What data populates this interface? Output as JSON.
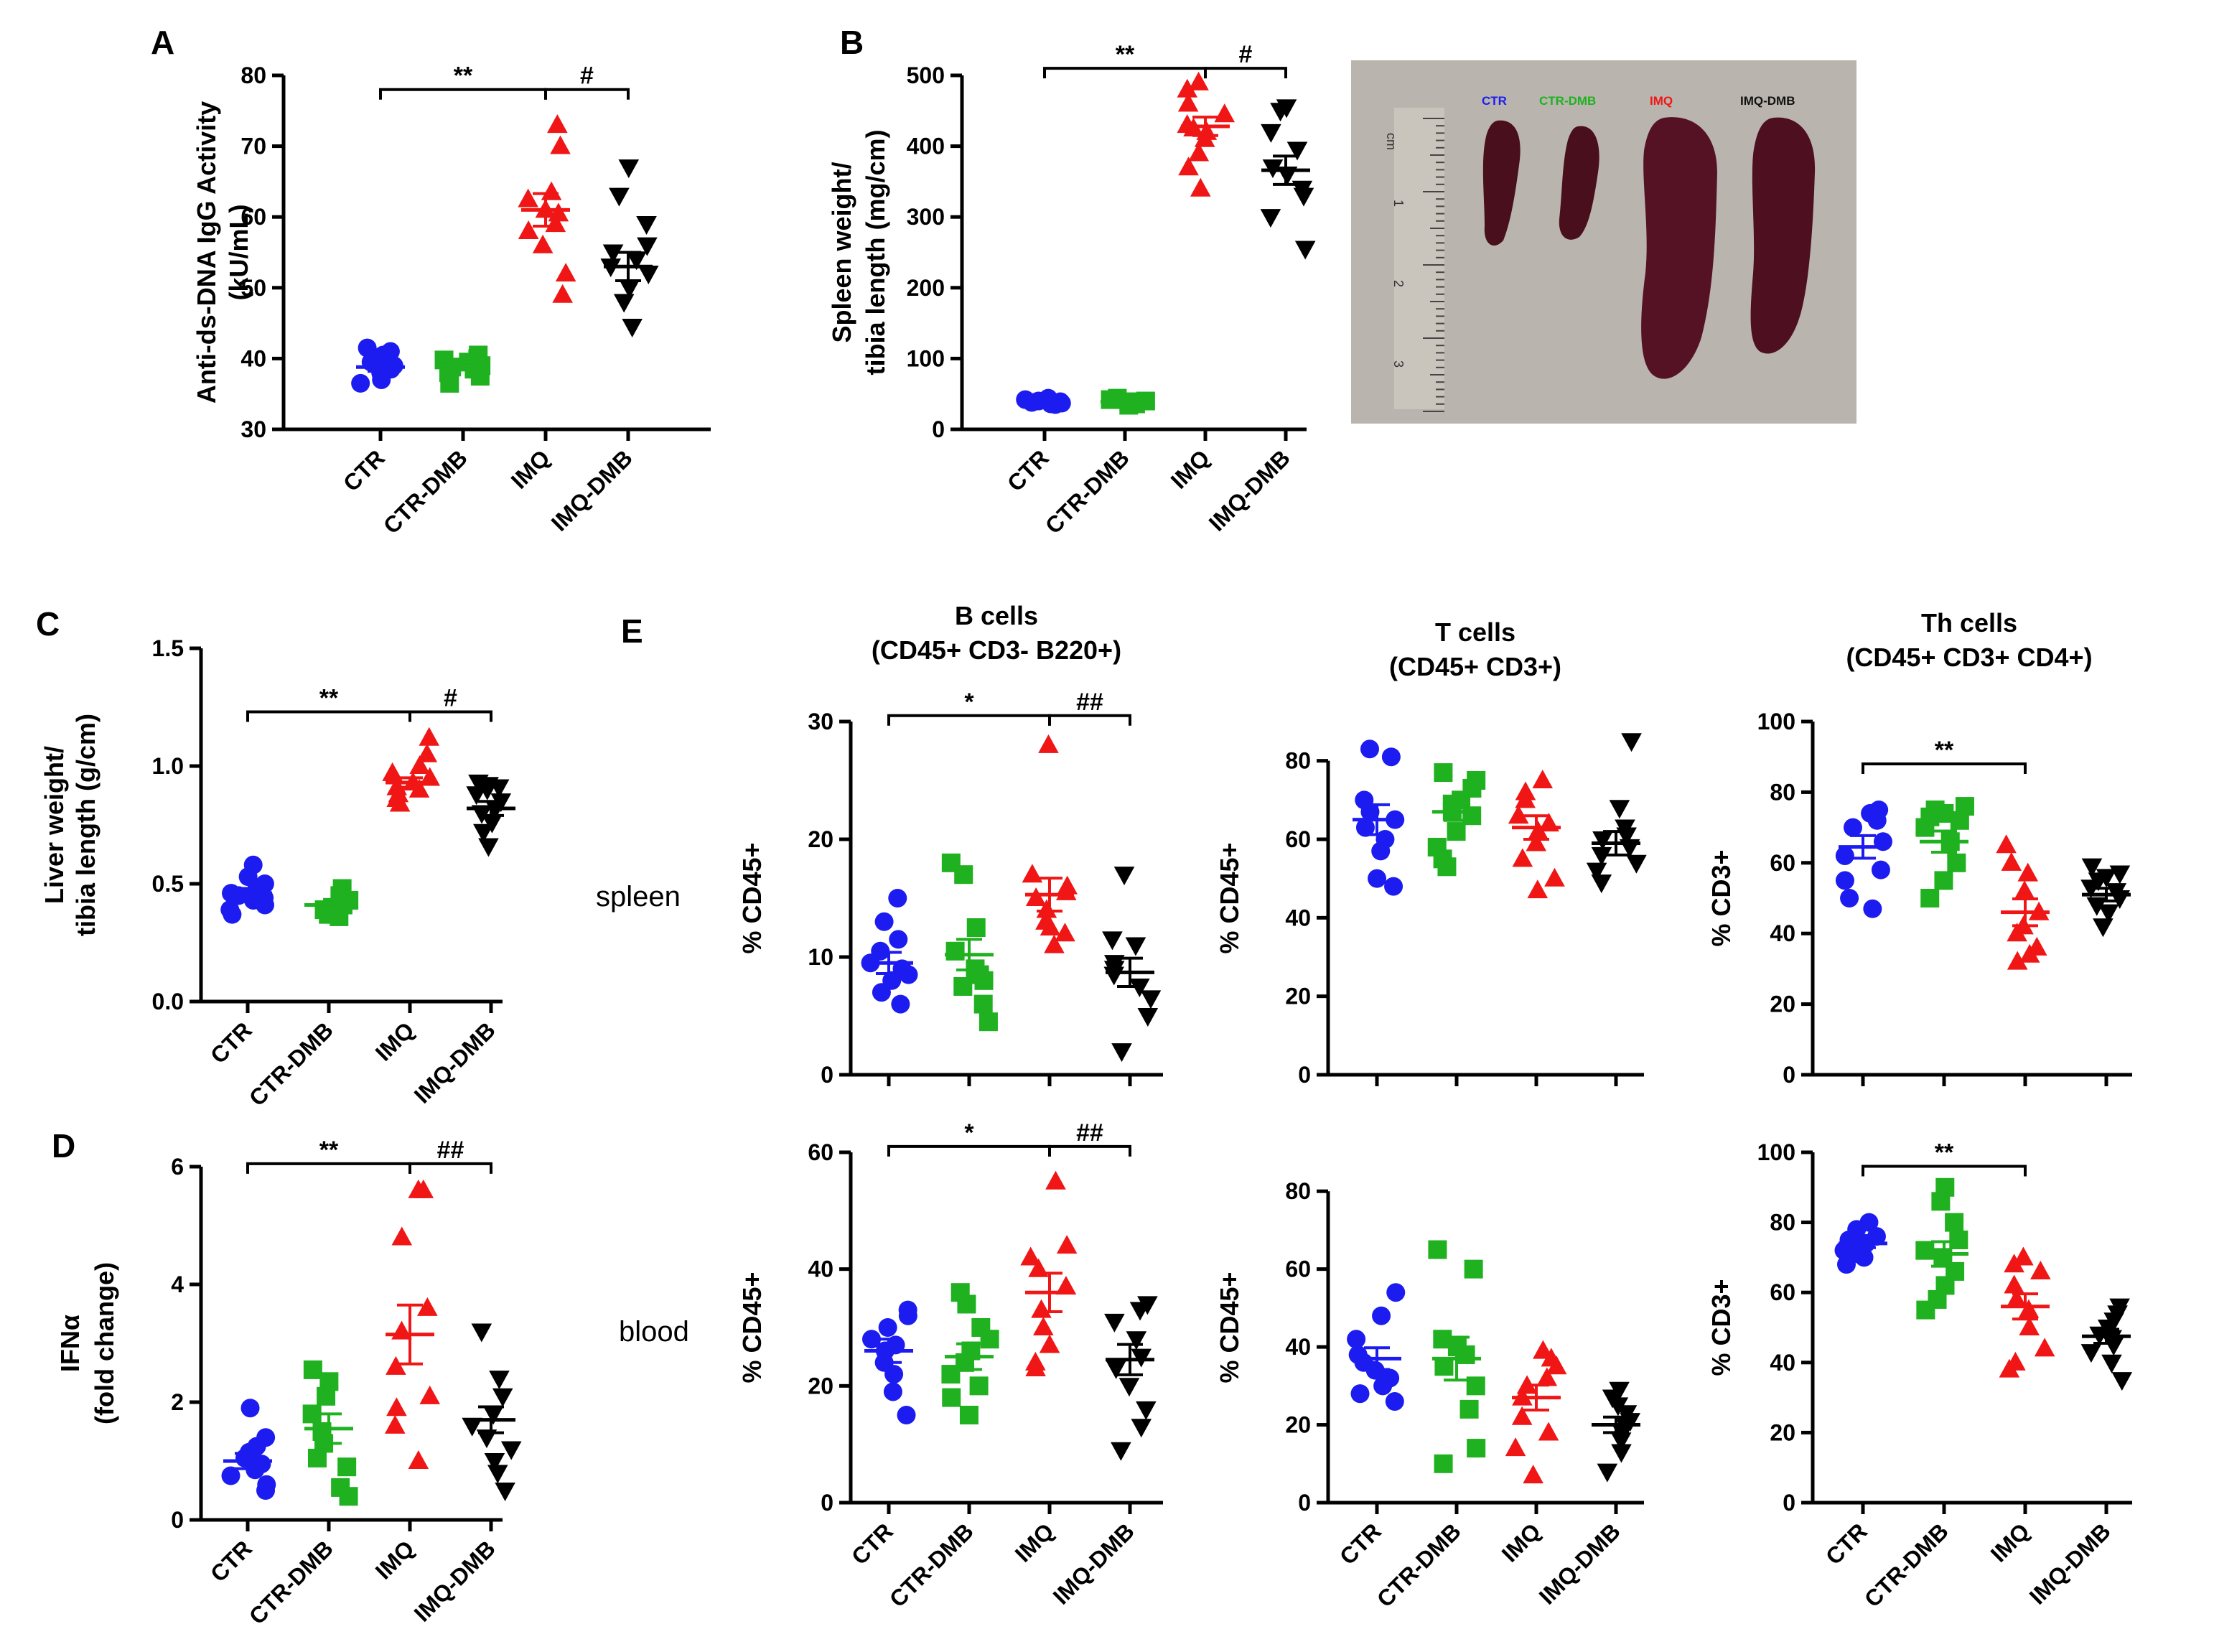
{
  "colors": {
    "CTR": "#1c1cf0",
    "CTR-DMB": "#1fb11f",
    "IMQ": "#f01616",
    "IMQ-DMB": "#000000"
  },
  "shapes": {
    "CTR": "circle",
    "CTR-DMB": "square",
    "IMQ": "triangle-up",
    "IMQ-DMB": "triangle-down"
  },
  "photo": {
    "legend": [
      "CTR",
      "CTR-DMB",
      "IMQ",
      "IMQ-DMB"
    ],
    "ruler_labels": [
      "cm",
      "1",
      "2",
      "3"
    ],
    "colors": {
      "background": "#b9b5ae",
      "spleen": "#4a0f1c"
    }
  },
  "row_labels": {
    "spleen": "spleen",
    "blood": "blood"
  },
  "chart_data": [
    {
      "id": "A",
      "type": "scatter",
      "panel_label": "A",
      "title": "",
      "subtitle": "",
      "ylabel": [
        "Anti-ds-DNA IgG Activity",
        "(kU/mL)"
      ],
      "xlabel": "",
      "categories": [
        "CTR",
        "CTR-DMB",
        "IMQ",
        "IMQ-DMB"
      ],
      "ylim": [
        30,
        80
      ],
      "yticks": [
        30,
        40,
        50,
        60,
        70,
        80
      ],
      "tick_labels": [
        "30",
        "40",
        "50",
        "60",
        "70",
        "80"
      ],
      "series": [
        {
          "name": "CTR",
          "values": [
            41.5,
            41,
            40.5,
            40,
            39.5,
            39,
            38.5,
            38,
            37.5,
            37,
            36.5
          ],
          "mean": 38.8,
          "sem": 0.6
        },
        {
          "name": "CTR-DMB",
          "values": [
            40.5,
            40,
            39.8,
            39.5,
            39,
            38.8,
            38.5,
            38,
            37.5,
            36.5
          ],
          "mean": 39,
          "sem": 0.5
        },
        {
          "name": "IMQ",
          "values": [
            73,
            70,
            63.5,
            62.5,
            61,
            60.5,
            59,
            58,
            56,
            52,
            49
          ],
          "mean": 61,
          "sem": 2.3
        },
        {
          "name": "IMQ-DMB",
          "values": [
            67,
            63,
            59,
            56,
            55,
            54,
            53,
            52,
            50,
            48,
            44.5
          ],
          "mean": 53,
          "sem": 2.0
        }
      ],
      "brackets": [
        {
          "from": "CTR",
          "to": "IMQ",
          "y": 78,
          "label": "**"
        },
        {
          "from": "IMQ",
          "to": "IMQ-DMB",
          "y": 78,
          "label": "#"
        }
      ]
    },
    {
      "id": "B",
      "type": "scatter",
      "panel_label": "B",
      "title": "",
      "subtitle": "",
      "ylabel": [
        "Spleen weight/",
        "tibia length (mg/cm)"
      ],
      "xlabel": "",
      "categories": [
        "CTR",
        "CTR-DMB",
        "IMQ",
        "IMQ-DMB"
      ],
      "ylim": [
        0,
        500
      ],
      "yticks": [
        0,
        100,
        200,
        300,
        400,
        500
      ],
      "tick_labels": [
        "0",
        "100",
        "200",
        "300",
        "400",
        "500"
      ],
      "series": [
        {
          "name": "CTR",
          "values": [
            44,
            42,
            40,
            39,
            38,
            37,
            36,
            35
          ],
          "mean": 39,
          "sem": 1
        },
        {
          "name": "CTR-DMB",
          "values": [
            44,
            42,
            40,
            39,
            38,
            37,
            36,
            34
          ],
          "mean": 39,
          "sem": 1
        },
        {
          "name": "IMQ",
          "values": [
            490,
            480,
            460,
            445,
            430,
            425,
            420,
            410,
            390,
            370,
            340
          ],
          "mean": 428,
          "sem": 13
        },
        {
          "name": "IMQ-DMB",
          "values": [
            455,
            450,
            420,
            395,
            370,
            360,
            340,
            330,
            300,
            255
          ],
          "mean": 366,
          "sem": 20
        }
      ],
      "brackets": [
        {
          "from": "CTR",
          "to": "IMQ",
          "y": 510,
          "label": "**"
        },
        {
          "from": "IMQ",
          "to": "IMQ-DMB",
          "y": 510,
          "label": "#"
        }
      ]
    },
    {
      "id": "C",
      "type": "scatter",
      "panel_label": "C",
      "title": "",
      "subtitle": "",
      "ylabel": [
        "Liver weight/",
        "tibia length (g/cm)"
      ],
      "xlabel": "",
      "categories": [
        "CTR",
        "CTR-DMB",
        "IMQ",
        "IMQ-DMB"
      ],
      "ylim": [
        0,
        1.5
      ],
      "yticks": [
        0,
        0.5,
        1.0,
        1.5
      ],
      "tick_labels": [
        "0.0",
        "0.5",
        "1.0",
        "1.5"
      ],
      "series": [
        {
          "name": "CTR",
          "values": [
            0.58,
            0.53,
            0.5,
            0.48,
            0.46,
            0.45,
            0.44,
            0.43,
            0.41,
            0.39,
            0.37
          ],
          "mean": 0.46,
          "sem": 0.02
        },
        {
          "name": "CTR-DMB",
          "values": [
            0.48,
            0.45,
            0.43,
            0.42,
            0.41,
            0.4,
            0.39,
            0.38,
            0.37,
            0.36
          ],
          "mean": 0.41,
          "sem": 0.01
        },
        {
          "name": "IMQ",
          "values": [
            1.12,
            1.05,
            1.0,
            0.97,
            0.95,
            0.93,
            0.91,
            0.9,
            0.88,
            0.86,
            0.84
          ],
          "mean": 0.93,
          "sem": 0.02
        },
        {
          "name": "IMQ-DMB",
          "values": [
            0.93,
            0.92,
            0.91,
            0.9,
            0.88,
            0.85,
            0.82,
            0.8,
            0.76,
            0.72,
            0.66
          ],
          "mean": 0.82,
          "sem": 0.03
        }
      ],
      "brackets": [
        {
          "from": "CTR",
          "to": "IMQ",
          "y": 1.23,
          "label": "**"
        },
        {
          "from": "IMQ",
          "to": "IMQ-DMB",
          "y": 1.23,
          "label": "#"
        }
      ]
    },
    {
      "id": "D",
      "type": "scatter",
      "panel_label": "D",
      "title": "",
      "subtitle": "",
      "ylabel": [
        "IFNα",
        "(fold change)"
      ],
      "xlabel": "",
      "categories": [
        "CTR",
        "CTR-DMB",
        "IMQ",
        "IMQ-DMB"
      ],
      "ylim": [
        0,
        6
      ],
      "yticks": [
        0,
        2,
        4,
        6
      ],
      "tick_labels": [
        "0",
        "2",
        "4",
        "6"
      ],
      "series": [
        {
          "name": "CTR",
          "values": [
            1.9,
            1.4,
            1.25,
            1.15,
            1.05,
            0.95,
            0.85,
            0.75,
            0.6,
            0.5
          ],
          "mean": 1.0,
          "sem": 0.13
        },
        {
          "name": "CTR-DMB",
          "values": [
            2.55,
            2.35,
            2.1,
            1.8,
            1.5,
            1.3,
            1.05,
            0.9,
            0.55,
            0.4
          ],
          "mean": 1.55,
          "sem": 0.25
        },
        {
          "name": "IMQ",
          "values": [
            5.6,
            5.6,
            4.8,
            3.6,
            3.2,
            2.6,
            2.1,
            1.9,
            1.6,
            1.0
          ],
          "mean": 3.15,
          "sem": 0.5
        },
        {
          "name": "IMQ-DMB",
          "values": [
            3.2,
            2.4,
            2.1,
            1.8,
            1.6,
            1.4,
            1.2,
            1.0,
            0.8,
            0.5
          ],
          "mean": 1.7,
          "sem": 0.22
        }
      ],
      "brackets": [
        {
          "from": "CTR",
          "to": "IMQ",
          "y": 6.05,
          "label": "**"
        },
        {
          "from": "IMQ",
          "to": "IMQ-DMB",
          "y": 6.05,
          "label": "##"
        }
      ]
    },
    {
      "id": "E-B-spleen",
      "type": "scatter",
      "panel_label": "E",
      "title": "B cells",
      "subtitle": "(CD45+ CD3- B220+)",
      "ylabel": [
        "% CD45+"
      ],
      "xlabel": "",
      "categories": [
        "CTR",
        "CTR-DMB",
        "IMQ",
        "IMQ-DMB"
      ],
      "ylim": [
        0,
        30
      ],
      "yticks": [
        0,
        10,
        20,
        30
      ],
      "tick_labels": [
        "0",
        "10",
        "20",
        "30"
      ],
      "series": [
        {
          "name": "CTR",
          "values": [
            15,
            13,
            11.5,
            10.5,
            9.5,
            9,
            8.5,
            8,
            7,
            6
          ],
          "mean": 9.5,
          "sem": 0.9
        },
        {
          "name": "CTR-DMB",
          "values": [
            18,
            17,
            12.5,
            10.5,
            9,
            8.5,
            8,
            7.5,
            6,
            4.5
          ],
          "mean": 10.2,
          "sem": 1.3
        },
        {
          "name": "IMQ",
          "values": [
            28,
            17,
            16,
            15.5,
            15,
            14,
            13,
            12.5,
            12,
            11
          ],
          "mean": 15.3,
          "sem": 1.4
        },
        {
          "name": "IMQ-DMB",
          "values": [
            17,
            11.5,
            11,
            9.5,
            9,
            8.5,
            7.5,
            6.5,
            5,
            2
          ],
          "mean": 8.7,
          "sem": 1.2
        }
      ],
      "brackets": [
        {
          "from": "CTR",
          "to": "IMQ",
          "y": 30.5,
          "label": "*"
        },
        {
          "from": "IMQ",
          "to": "IMQ-DMB",
          "y": 30.5,
          "label": "##"
        }
      ]
    },
    {
      "id": "E-T-spleen",
      "type": "scatter",
      "panel_label": "",
      "title": "T cells",
      "subtitle": "(CD45+ CD3+)",
      "ylabel": [
        "% CD45+"
      ],
      "xlabel": "",
      "categories": [
        "CTR",
        "CTR-DMB",
        "IMQ",
        "IMQ-DMB"
      ],
      "ylim": [
        0,
        90
      ],
      "yticks": [
        0,
        20,
        40,
        60,
        80
      ],
      "tick_labels": [
        "0",
        "20",
        "40",
        "60",
        "80"
      ],
      "series": [
        {
          "name": "CTR",
          "values": [
            83,
            81,
            70,
            67,
            65,
            63,
            60,
            57,
            50,
            48
          ],
          "mean": 65,
          "sem": 3.8
        },
        {
          "name": "CTR-DMB",
          "values": [
            77,
            75,
            73,
            70,
            69,
            67,
            66,
            62,
            58,
            55,
            53
          ],
          "mean": 67,
          "sem": 2.2
        },
        {
          "name": "IMQ",
          "values": [
            75,
            72,
            70,
            66,
            64,
            62,
            59,
            55,
            50,
            47
          ],
          "mean": 63,
          "sem": 3
        },
        {
          "name": "IMQ-DMB",
          "values": [
            85,
            68,
            63,
            61,
            60,
            58,
            56,
            54,
            52,
            49
          ],
          "mean": 59,
          "sem": 3
        }
      ],
      "brackets": []
    },
    {
      "id": "E-Th-spleen",
      "type": "scatter",
      "panel_label": "",
      "title": "Th cells",
      "subtitle": "(CD45+ CD3+ CD4+)",
      "ylabel": [
        "% CD3+"
      ],
      "xlabel": "",
      "categories": [
        "CTR",
        "CTR-DMB",
        "IMQ",
        "IMQ-DMB"
      ],
      "ylim": [
        0,
        100
      ],
      "yticks": [
        0,
        20,
        40,
        60,
        80,
        100
      ],
      "tick_labels": [
        "0",
        "20",
        "40",
        "60",
        "80",
        "100"
      ],
      "series": [
        {
          "name": "CTR",
          "values": [
            75,
            74,
            72,
            70,
            66,
            62,
            58,
            55,
            50,
            47
          ],
          "mean": 64.5,
          "sem": 3.2
        },
        {
          "name": "CTR-DMB",
          "values": [
            76,
            75,
            74,
            73,
            72,
            70,
            66,
            60,
            55,
            50
          ],
          "mean": 66,
          "sem": 3
        },
        {
          "name": "IMQ",
          "values": [
            65,
            60,
            57,
            52,
            46,
            42,
            40,
            36,
            34,
            32
          ],
          "mean": 46,
          "sem": 3.8
        },
        {
          "name": "IMQ-DMB",
          "values": [
            59,
            57,
            56,
            55,
            53,
            52,
            50,
            48,
            46,
            42
          ],
          "mean": 51,
          "sem": 1.8
        }
      ],
      "brackets": [
        {
          "from": "CTR",
          "to": "IMQ",
          "y": 88,
          "label": "**"
        }
      ]
    },
    {
      "id": "E-B-blood",
      "type": "scatter",
      "panel_label": "",
      "title": "",
      "subtitle": "",
      "ylabel": [
        "% CD45+"
      ],
      "xlabel": "",
      "categories": [
        "CTR",
        "CTR-DMB",
        "IMQ",
        "IMQ-DMB"
      ],
      "ylim": [
        0,
        60
      ],
      "yticks": [
        0,
        20,
        40,
        60
      ],
      "tick_labels": [
        "0",
        "20",
        "40",
        "60"
      ],
      "series": [
        {
          "name": "CTR",
          "values": [
            33,
            32,
            30,
            28,
            27,
            26,
            24,
            22,
            19,
            15
          ],
          "mean": 26,
          "sem": 2
        },
        {
          "name": "CTR-DMB",
          "values": [
            36,
            34,
            30,
            28,
            26,
            24,
            22,
            20,
            18,
            15
          ],
          "mean": 25,
          "sem": 2.2
        },
        {
          "name": "IMQ",
          "values": [
            55,
            44,
            42,
            40,
            37,
            33,
            30,
            27,
            24,
            23
          ],
          "mean": 36,
          "sem": 3.3
        },
        {
          "name": "IMQ-DMB",
          "values": [
            34,
            33,
            31,
            28,
            25,
            23,
            20,
            16,
            13,
            9
          ],
          "mean": 24.5,
          "sem": 2.6
        }
      ],
      "brackets": [
        {
          "from": "CTR",
          "to": "IMQ",
          "y": 61,
          "label": "*"
        },
        {
          "from": "IMQ",
          "to": "IMQ-DMB",
          "y": 61,
          "label": "##"
        }
      ]
    },
    {
      "id": "E-T-blood",
      "type": "scatter",
      "panel_label": "",
      "title": "",
      "subtitle": "",
      "ylabel": [
        "% CD45+"
      ],
      "xlabel": "",
      "categories": [
        "CTR",
        "CTR-DMB",
        "IMQ",
        "IMQ-DMB"
      ],
      "ylim": [
        0,
        90
      ],
      "yticks": [
        0,
        20,
        40,
        60,
        80
      ],
      "tick_labels": [
        "0",
        "20",
        "40",
        "60",
        "80"
      ],
      "series": [
        {
          "name": "CTR",
          "values": [
            54,
            48,
            42,
            38,
            36,
            34,
            32,
            30,
            28,
            26
          ],
          "mean": 37,
          "sem": 2.8
        },
        {
          "name": "CTR-DMB",
          "values": [
            65,
            60,
            42,
            40,
            38,
            35,
            30,
            24,
            14,
            10
          ],
          "mean": 37,
          "sem": 5.5
        },
        {
          "name": "IMQ",
          "values": [
            39,
            37,
            35,
            32,
            30,
            27,
            22,
            18,
            14,
            7
          ],
          "mean": 27,
          "sem": 3.2
        },
        {
          "name": "IMQ-DMB",
          "values": [
            29,
            27,
            25,
            23,
            21,
            20,
            18,
            16,
            13,
            8
          ],
          "mean": 20,
          "sem": 2
        }
      ],
      "brackets": []
    },
    {
      "id": "E-Th-blood",
      "type": "scatter",
      "panel_label": "",
      "title": "",
      "subtitle": "",
      "ylabel": [
        "% CD3+"
      ],
      "xlabel": "",
      "categories": [
        "CTR",
        "CTR-DMB",
        "IMQ",
        "IMQ-DMB"
      ],
      "ylim": [
        0,
        100
      ],
      "yticks": [
        0,
        20,
        40,
        60,
        80,
        100
      ],
      "tick_labels": [
        "0",
        "20",
        "40",
        "60",
        "80",
        "100"
      ],
      "series": [
        {
          "name": "CTR",
          "values": [
            80,
            78,
            76,
            75,
            74,
            73,
            72,
            71,
            70,
            68
          ],
          "mean": 74,
          "sem": 1.2
        },
        {
          "name": "CTR-DMB",
          "values": [
            90,
            86,
            80,
            75,
            72,
            70,
            66,
            62,
            58,
            55
          ],
          "mean": 71,
          "sem": 3.5
        },
        {
          "name": "IMQ",
          "values": [
            70,
            68,
            66,
            62,
            58,
            55,
            50,
            44,
            40,
            38
          ],
          "mean": 56,
          "sem": 3.6
        },
        {
          "name": "IMQ-DMB",
          "values": [
            56,
            54,
            52,
            50,
            48,
            47,
            45,
            43,
            40,
            35
          ],
          "mean": 47.5,
          "sem": 2
        }
      ],
      "brackets": [
        {
          "from": "CTR",
          "to": "IMQ",
          "y": 96,
          "label": "**"
        }
      ]
    }
  ]
}
